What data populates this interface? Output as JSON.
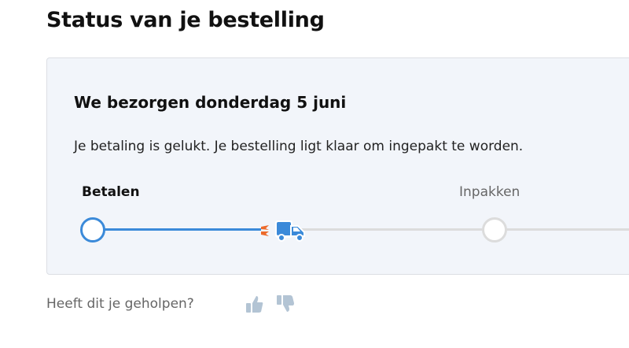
{
  "page_title": "Status van je bestelling",
  "status": {
    "heading": "We bezorgen donderdag 5 juni",
    "message": "Je betaling is gelukt. Je bestelling ligt klaar om ingepakt te worden.",
    "steps": [
      {
        "label": "Betalen",
        "state": "done"
      },
      {
        "label": "Inpakken",
        "state": "pending"
      }
    ],
    "progress_icon": "truck-icon",
    "accent_color": "#3b8ad9"
  },
  "feedback": {
    "question": "Heeft dit je geholpen?",
    "yes_icon": "thumbs-up-icon",
    "no_icon": "thumbs-down-icon"
  }
}
